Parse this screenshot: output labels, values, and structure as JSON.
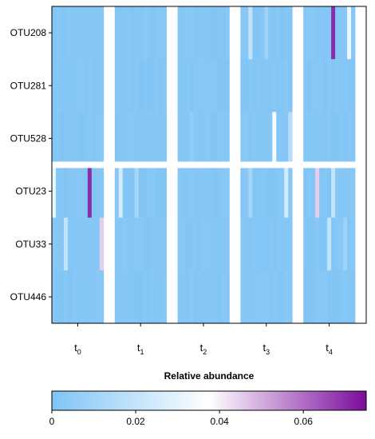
{
  "chart_data": {
    "type": "heatmap",
    "rows": [
      "OTU208",
      "OTU281",
      "OTU528",
      "OTU23",
      "OTU33",
      "OTU446"
    ],
    "groups": [
      {
        "label": "t",
        "sub": "0"
      },
      {
        "label": "t",
        "sub": "1"
      },
      {
        "label": "t",
        "sub": "2"
      },
      {
        "label": "t",
        "sub": "3"
      },
      {
        "label": "t",
        "sub": "4"
      }
    ],
    "colorbar": {
      "title": "Relative abundance",
      "min": 0,
      "max": 0.075,
      "ticks": [
        "0",
        "0.02",
        "0.04",
        "0.06"
      ],
      "tick_values": [
        0,
        0.02,
        0.04,
        0.06
      ],
      "colors": [
        "#7fc4f5",
        "#ffffff",
        "#7a0c9c"
      ]
    },
    "highlights": [
      {
        "row": "OTU208",
        "group": "t4",
        "value": 0.07
      },
      {
        "row": "OTU208",
        "group": "t3",
        "value": 0.02
      },
      {
        "row": "OTU23",
        "group": "t0",
        "value": 0.07
      },
      {
        "row": "OTU23",
        "group": "t1",
        "value": 0.025
      },
      {
        "row": "OTU23",
        "group": "t3",
        "value": 0.025
      },
      {
        "row": "OTU23",
        "group": "t4",
        "value": 0.045
      },
      {
        "row": "OTU33",
        "group": "t0",
        "value": 0.045
      },
      {
        "row": "OTU33",
        "group": "t4",
        "value": 0.02
      },
      {
        "row": "OTU528",
        "group": "t2",
        "value": 0.006
      },
      {
        "row": "OTU528",
        "group": "t3",
        "value": 0.035
      }
    ]
  }
}
